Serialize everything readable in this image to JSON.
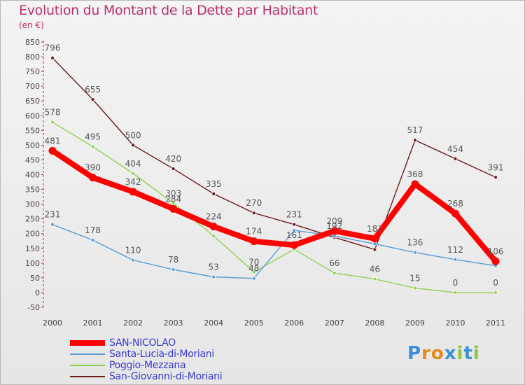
{
  "header": {
    "title": "Evolution du Montant de la Dette par Habitant",
    "subtitle": "(en €)"
  },
  "logo": {
    "text": "Proxiti",
    "letters": [
      "P",
      "r",
      "o",
      "x",
      "i",
      "t",
      "i"
    ]
  },
  "chart_data": {
    "type": "line",
    "title": "Evolution du Montant de la Dette par Habitant",
    "subtitle": "(en €)",
    "xlabel": "",
    "ylabel": "",
    "x": [
      "2000",
      "2001",
      "2002",
      "2003",
      "2004",
      "2005",
      "2006",
      "2007",
      "2008",
      "2009",
      "2010",
      "2011"
    ],
    "ylim": [
      -50,
      850
    ],
    "yticks": [
      -50,
      0,
      50,
      100,
      150,
      200,
      250,
      300,
      350,
      400,
      450,
      500,
      550,
      600,
      650,
      700,
      750,
      800,
      850
    ],
    "grid": false,
    "legend_position": "bottom-left",
    "series": [
      {
        "name": "San-Giovanni-di-Moriani",
        "color": "#6b1a1a",
        "width": 1.4,
        "marker": 5,
        "values": [
          796,
          655,
          500,
          420,
          335,
          270,
          231,
          187,
          146,
          517,
          454,
          391
        ],
        "labels": [
          "796",
          "655",
          "500",
          "420",
          "335",
          "270",
          "231",
          "",
          "",
          "517",
          "454",
          "391"
        ]
      },
      {
        "name": "Poggio-Mezzana",
        "color": "#92d050",
        "width": 1.4,
        "marker": 5,
        "values": [
          578,
          495,
          404,
          303,
          192,
          70,
          147,
          66,
          46,
          15,
          0,
          0
        ],
        "labels": [
          "578",
          "495",
          "404",
          "303",
          "",
          "70",
          "",
          "66",
          "46",
          "15",
          "0",
          "0"
        ]
      },
      {
        "name": "Santa-Lucia-di-Moriani",
        "color": "#5b9bd5",
        "width": 1.4,
        "marker": 5,
        "values": [
          231,
          178,
          110,
          78,
          53,
          48,
          211,
          192,
          165,
          136,
          112,
          91
        ],
        "labels": [
          "231",
          "178",
          "110",
          "78",
          "53",
          "48",
          "",
          "192",
          "",
          "136",
          "112",
          ""
        ]
      },
      {
        "name": "SAN-NICOLAO",
        "color": "#ff0000",
        "width": 8,
        "marker": 11,
        "values": [
          481,
          390,
          342,
          284,
          224,
          174,
          161,
          209,
          183,
          368,
          268,
          106
        ],
        "labels": [
          "481",
          "390",
          "342",
          "284",
          "224",
          "174",
          "161",
          "209",
          "183",
          "368",
          "268",
          "106"
        ]
      }
    ]
  },
  "legend": [
    {
      "label": "SAN-NICOLAO",
      "color": "#ff0000",
      "thickness": 8
    },
    {
      "label": "Santa-Lucia-di-Moriani",
      "color": "#5b9bd5",
      "thickness": 2
    },
    {
      "label": "Poggio-Mezzana",
      "color": "#92d050",
      "thickness": 2
    },
    {
      "label": "San-Giovanni-di-Moriani",
      "color": "#6b1a1a",
      "thickness": 2
    }
  ]
}
